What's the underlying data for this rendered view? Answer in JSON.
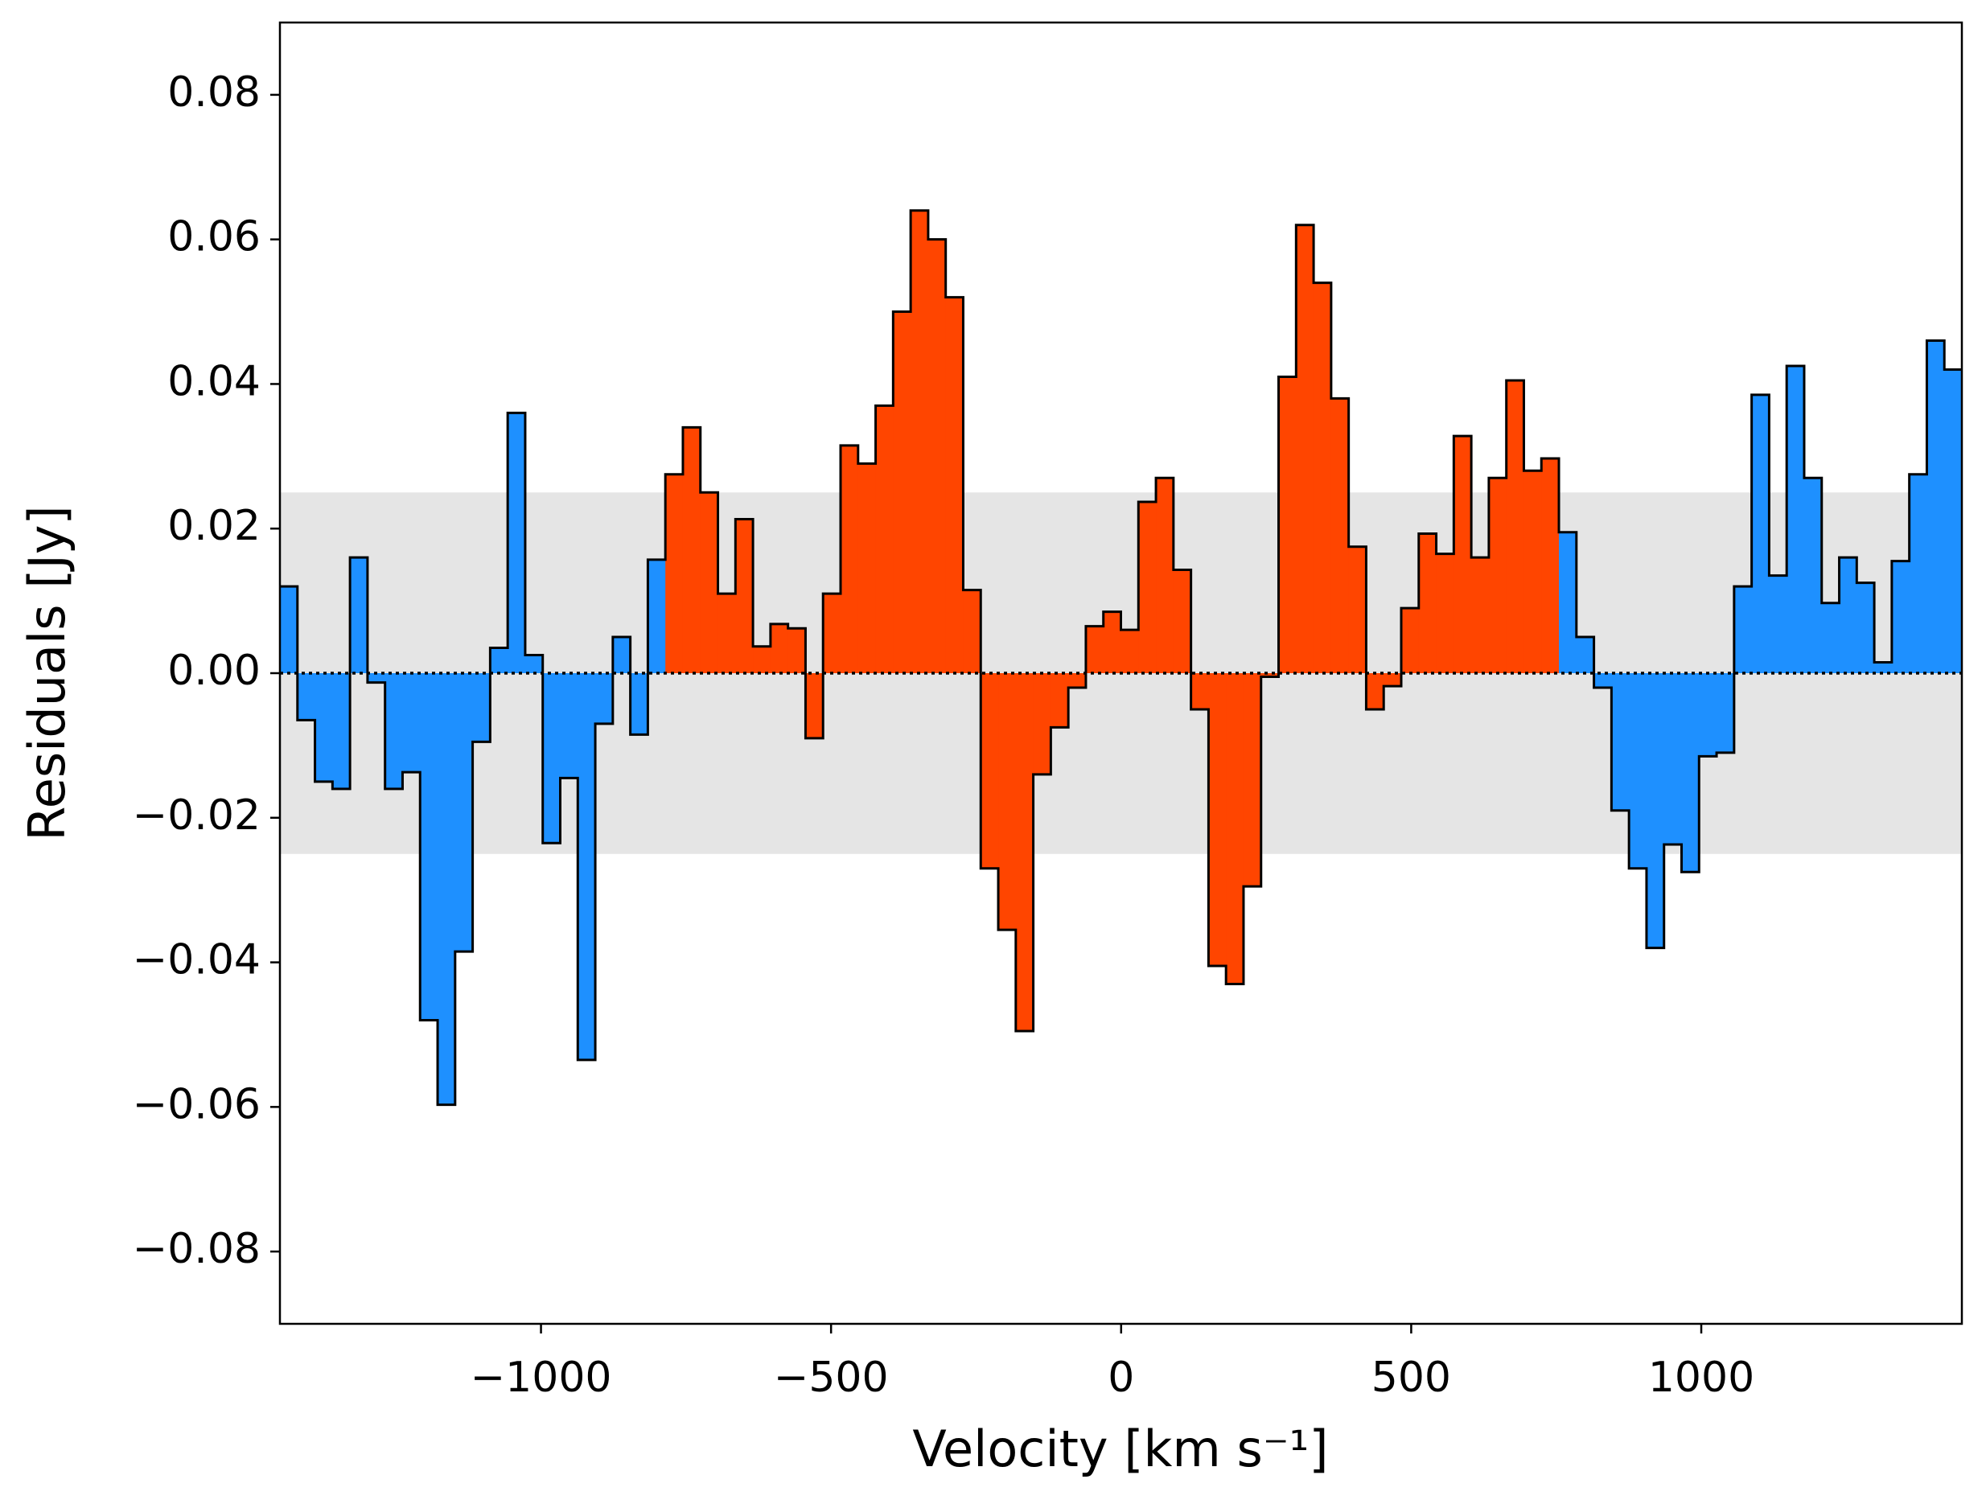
{
  "chart_data": {
    "type": "histogram",
    "xlabel": "Velocity [km s⁻¹]",
    "ylabel": "Residuals [Jy]",
    "bins": [
      -1450,
      -1419.8,
      -1389.6,
      -1359.4,
      -1329.2,
      -1299,
      -1268.8,
      -1238.6,
      -1208.4,
      -1178.2,
      -1148,
      -1117.8,
      -1087.6,
      -1057.4,
      -1027.2,
      -997,
      -966.8,
      -936.6,
      -906.4,
      -876.2,
      -846,
      -815.8,
      -785.6,
      -755.4,
      -725.2,
      -695,
      -664.8,
      -634.6,
      -604.4,
      -574.2,
      -544,
      -513.8,
      -483.6,
      -453.4,
      -423.2,
      -393,
      -362.8,
      -332.6,
      -302.4,
      -272.2,
      -242,
      -211.8,
      -181.6,
      -151.4,
      -121.2,
      -91,
      -60.8,
      -30.6,
      -0.4,
      29.8,
      60,
      90.2,
      120.4,
      150.6,
      180.8,
      211,
      241.2,
      271.4,
      301.6,
      331.8,
      362,
      392.2,
      422.4,
      452.6,
      482.8,
      513,
      543.2,
      573.4,
      603.6,
      633.8,
      664,
      694.2,
      724.4,
      754.6,
      784.8,
      815,
      845.2,
      875.4,
      905.6,
      935.8,
      966,
      996.2,
      1026.4,
      1056.6,
      1086.8,
      1117,
      1147.2,
      1177.4,
      1207.6,
      1237.8,
      1268,
      1298.2,
      1328.4,
      1358.6,
      1388.8,
      1419,
      1449.2
    ],
    "values": [
      0.012,
      -0.0065,
      -0.015,
      -0.016,
      0.016,
      -0.0013,
      -0.016,
      -0.0137,
      -0.048,
      -0.0597,
      -0.0385,
      -0.0095,
      0.0035,
      0.036,
      0.0025,
      -0.0235,
      -0.0145,
      -0.0535,
      -0.007,
      0.005,
      -0.0085,
      0.0157,
      0.0275,
      0.034,
      0.025,
      0.011,
      0.0213,
      0.0037,
      0.0068,
      0.0062,
      -0.009,
      0.011,
      0.0315,
      0.029,
      0.037,
      0.05,
      0.064,
      0.06,
      0.052,
      0.0115,
      -0.027,
      -0.0355,
      -0.0495,
      -0.014,
      -0.0075,
      -0.002,
      0.0065,
      0.0085,
      0.006,
      0.0237,
      0.027,
      0.0143,
      -0.005,
      -0.0405,
      -0.043,
      -0.0295,
      -0.0005,
      0.041,
      0.062,
      0.054,
      0.038,
      0.0175,
      -0.005,
      -0.0018,
      0.009,
      0.0193,
      0.0165,
      0.0328,
      0.016,
      0.027,
      0.0405,
      0.028,
      0.0297,
      0.0195,
      0.005,
      -0.002,
      -0.019,
      -0.027,
      -0.038,
      -0.0237,
      -0.0275,
      -0.0115,
      -0.011,
      0.012,
      0.0385,
      0.0135,
      0.0425,
      0.027,
      0.0097,
      0.016,
      0.0125,
      0.0015,
      0.0155,
      0.0275,
      0.046,
      0.042
    ],
    "colors": [
      "#1e90ff",
      "#1e90ff",
      "#1e90ff",
      "#1e90ff",
      "#1e90ff",
      "#1e90ff",
      "#1e90ff",
      "#1e90ff",
      "#1e90ff",
      "#1e90ff",
      "#1e90ff",
      "#1e90ff",
      "#1e90ff",
      "#1e90ff",
      "#1e90ff",
      "#1e90ff",
      "#1e90ff",
      "#1e90ff",
      "#1e90ff",
      "#1e90ff",
      "#1e90ff",
      "#1e90ff",
      "#ff4500",
      "#ff4500",
      "#ff4500",
      "#ff4500",
      "#ff4500",
      "#ff4500",
      "#ff4500",
      "#ff4500",
      "#ff4500",
      "#ff4500",
      "#ff4500",
      "#ff4500",
      "#ff4500",
      "#ff4500",
      "#ff4500",
      "#ff4500",
      "#ff4500",
      "#ff4500",
      "#ff4500",
      "#ff4500",
      "#ff4500",
      "#ff4500",
      "#ff4500",
      "#ff4500",
      "#ff4500",
      "#ff4500",
      "#ff4500",
      "#ff4500",
      "#ff4500",
      "#ff4500",
      "#ff4500",
      "#ff4500",
      "#ff4500",
      "#ff4500",
      "#ff4500",
      "#ff4500",
      "#ff4500",
      "#ff4500",
      "#ff4500",
      "#ff4500",
      "#ff4500",
      "#ff4500",
      "#ff4500",
      "#ff4500",
      "#ff4500",
      "#ff4500",
      "#ff4500",
      "#ff4500",
      "#ff4500",
      "#ff4500",
      "#ff4500",
      "#1e90ff",
      "#1e90ff",
      "#1e90ff",
      "#1e90ff",
      "#1e90ff",
      "#1e90ff",
      "#1e90ff",
      "#1e90ff",
      "#1e90ff",
      "#1e90ff",
      "#1e90ff",
      "#1e90ff",
      "#1e90ff",
      "#1e90ff",
      "#1e90ff",
      "#1e90ff",
      "#1e90ff",
      "#1e90ff",
      "#1e90ff",
      "#1e90ff",
      "#1e90ff",
      "#1e90ff",
      "#1e90ff"
    ],
    "band": [
      -0.025,
      0.025
    ],
    "band_color": "#e5e5e5",
    "xlim": [
      -1450,
      1449.2
    ],
    "ylim": [
      -0.09,
      0.09
    ],
    "xticks": [
      {
        "value": -1000,
        "label": "−1000"
      },
      {
        "value": -500,
        "label": "−500"
      },
      0,
      500,
      1000
    ],
    "yticks": [
      {
        "value": -0.08,
        "label": "−0.08"
      },
      {
        "value": -0.06,
        "label": "−0.06"
      },
      {
        "value": -0.04,
        "label": "−0.04"
      },
      {
        "value": -0.02,
        "label": "−0.02"
      },
      {
        "value": 0,
        "label": "0.00"
      },
      {
        "value": 0.02,
        "label": "0.02"
      },
      {
        "value": 0.04,
        "label": "0.04"
      },
      {
        "value": 0.06,
        "label": "0.06"
      },
      {
        "value": 0.08,
        "label": "0.08"
      }
    ]
  }
}
